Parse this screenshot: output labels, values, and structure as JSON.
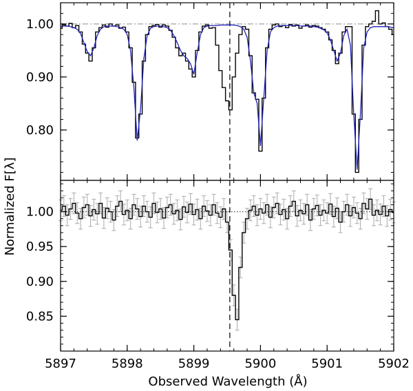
{
  "chart_data": [
    {
      "type": "line",
      "panel": "top",
      "xlim": [
        5897,
        5902
      ],
      "ylim": [
        0.705,
        1.04
      ],
      "yticks": [
        0.8,
        0.9,
        1.0
      ],
      "ytick_labels": [
        "0.80",
        "0.90",
        "1.00"
      ],
      "continuum_level": 1.0,
      "marker_x": 5899.54,
      "grid": false,
      "series": [
        {
          "color": "#000000",
          "style": "steps",
          "x": [
            5897.0,
            5897.05,
            5897.1,
            5897.15,
            5897.2,
            5897.25,
            5897.3,
            5897.35,
            5897.4,
            5897.45,
            5897.5,
            5897.55,
            5897.6,
            5897.65,
            5897.7,
            5897.75,
            5897.8,
            5897.85,
            5897.9,
            5897.95,
            5898.0,
            5898.05,
            5898.1,
            5898.15,
            5898.2,
            5898.25,
            5898.3,
            5898.35,
            5898.4,
            5898.45,
            5898.5,
            5898.55,
            5898.6,
            5898.65,
            5898.7,
            5898.75,
            5898.8,
            5898.85,
            5898.9,
            5898.95,
            5899.0,
            5899.05,
            5899.1,
            5899.15,
            5899.2,
            5899.25,
            5899.3,
            5899.35,
            5899.4,
            5899.45,
            5899.5,
            5899.55,
            5899.6,
            5899.65,
            5899.7,
            5899.75,
            5899.8,
            5899.85,
            5899.9,
            5899.95,
            5900.0,
            5900.05,
            5900.1,
            5900.15,
            5900.2,
            5900.25,
            5900.3,
            5900.35,
            5900.4,
            5900.45,
            5900.5,
            5900.55,
            5900.6,
            5900.65,
            5900.7,
            5900.75,
            5900.8,
            5900.85,
            5900.9,
            5900.95,
            5901.0,
            5901.05,
            5901.1,
            5901.15,
            5901.2,
            5901.25,
            5901.3,
            5901.35,
            5901.4,
            5901.45,
            5901.5,
            5901.55,
            5901.6,
            5901.65,
            5901.7,
            5901.75,
            5901.8,
            5901.85,
            5901.9,
            5901.95,
            5902.0
          ],
          "y": [
            0.992,
            0.998,
            0.996,
            1.001,
            0.993,
            0.997,
            0.985,
            0.962,
            0.945,
            0.93,
            0.955,
            0.985,
            0.993,
            0.998,
            0.994,
            1.0,
            0.996,
            0.998,
            0.992,
            0.994,
            0.985,
            0.955,
            0.89,
            0.785,
            0.83,
            0.93,
            0.98,
            0.995,
            0.997,
            0.999,
            0.994,
            0.998,
            0.996,
            0.988,
            0.975,
            0.955,
            0.94,
            0.945,
            0.93,
            0.915,
            0.9,
            0.95,
            0.985,
            0.996,
            0.998,
            0.992,
            0.993,
            0.96,
            0.912,
            0.88,
            0.855,
            0.838,
            0.9,
            0.945,
            0.98,
            0.995,
            0.99,
            0.94,
            0.87,
            0.858,
            0.76,
            0.86,
            0.955,
            0.99,
            0.998,
            1.0,
            0.995,
            0.997,
            0.993,
            0.999,
            0.996,
            0.998,
            0.992,
            0.996,
            0.998,
            0.994,
            0.997,
            0.996,
            0.993,
            0.99,
            0.985,
            0.97,
            0.95,
            0.925,
            0.945,
            0.985,
            0.995,
            0.995,
            0.83,
            0.72,
            0.82,
            0.96,
            0.995,
            1.0,
            1.005,
            1.025,
            1.0,
            1.002,
            0.995,
            0.99,
            0.98
          ]
        },
        {
          "color": "#2222bb",
          "style": "line",
          "x": [
            5897.0,
            5897.05,
            5897.1,
            5897.15,
            5897.2,
            5897.25,
            5897.3,
            5897.35,
            5897.4,
            5897.45,
            5897.5,
            5897.55,
            5897.6,
            5897.65,
            5897.7,
            5897.75,
            5897.8,
            5897.85,
            5897.9,
            5897.95,
            5898.0,
            5898.05,
            5898.1,
            5898.15,
            5898.2,
            5898.25,
            5898.3,
            5898.35,
            5898.4,
            5898.45,
            5898.5,
            5898.55,
            5898.6,
            5898.65,
            5898.7,
            5898.75,
            5898.8,
            5898.85,
            5898.9,
            5898.95,
            5899.0,
            5899.05,
            5899.1,
            5899.15,
            5899.2,
            5899.25,
            5899.3,
            5899.35,
            5899.4,
            5899.45,
            5899.5,
            5899.55,
            5899.6,
            5899.65,
            5899.7,
            5899.75,
            5899.8,
            5899.85,
            5899.9,
            5899.95,
            5900.0,
            5900.05,
            5900.1,
            5900.15,
            5900.2,
            5900.25,
            5900.3,
            5900.35,
            5900.4,
            5900.45,
            5900.5,
            5900.55,
            5900.6,
            5900.65,
            5900.7,
            5900.75,
            5900.8,
            5900.85,
            5900.9,
            5900.95,
            5901.0,
            5901.05,
            5901.1,
            5901.15,
            5901.2,
            5901.25,
            5901.3,
            5901.35,
            5901.4,
            5901.45,
            5901.5,
            5901.55,
            5901.6,
            5901.65,
            5901.7,
            5901.75,
            5901.8,
            5901.85,
            5901.9,
            5901.95,
            5902.0
          ],
          "y": [
            0.995,
            0.996,
            0.996,
            0.995,
            0.993,
            0.99,
            0.982,
            0.965,
            0.948,
            0.94,
            0.955,
            0.978,
            0.99,
            0.995,
            0.996,
            0.996,
            0.996,
            0.995,
            0.993,
            0.99,
            0.98,
            0.95,
            0.88,
            0.78,
            0.84,
            0.935,
            0.978,
            0.992,
            0.995,
            0.996,
            0.996,
            0.995,
            0.993,
            0.988,
            0.978,
            0.965,
            0.95,
            0.94,
            0.935,
            0.925,
            0.905,
            0.945,
            0.98,
            0.993,
            0.996,
            0.997,
            0.997,
            0.997,
            0.998,
            0.998,
            0.998,
            0.998,
            0.998,
            0.997,
            0.995,
            0.99,
            0.975,
            0.93,
            0.87,
            0.85,
            0.77,
            0.86,
            0.95,
            0.985,
            0.993,
            0.996,
            0.997,
            0.997,
            0.997,
            0.997,
            0.997,
            0.997,
            0.996,
            0.996,
            0.996,
            0.996,
            0.995,
            0.994,
            0.992,
            0.989,
            0.983,
            0.97,
            0.95,
            0.93,
            0.945,
            0.978,
            0.99,
            0.96,
            0.83,
            0.725,
            0.83,
            0.955,
            0.985,
            0.993,
            0.995,
            0.995,
            0.995,
            0.995,
            0.995,
            0.994,
            0.993
          ]
        }
      ]
    },
    {
      "type": "line",
      "panel": "bottom",
      "xlim": [
        5897,
        5902
      ],
      "ylim": [
        0.8,
        1.045
      ],
      "yticks": [
        0.85,
        0.9,
        0.95,
        1.0
      ],
      "ytick_labels": [
        "0.85",
        "0.90",
        "0.95",
        "1.00"
      ],
      "xticks": [
        5897,
        5898,
        5899,
        5900,
        5901,
        5902
      ],
      "xtick_labels": [
        "5897",
        "5898",
        "5899",
        "5900",
        "5901",
        "5902"
      ],
      "xlabel": "Observed Wavelength (Å)",
      "ylabel": "Normalized F[λ]",
      "continuum_level": 1.0,
      "marker_x": 5899.54,
      "error_bar": 0.015,
      "grid": false,
      "series": [
        {
          "color": "#000000",
          "errorbar_color": "#aaaaaa",
          "style": "steps",
          "x": [
            5897.0,
            5897.05,
            5897.1,
            5897.15,
            5897.2,
            5897.25,
            5897.3,
            5897.35,
            5897.4,
            5897.45,
            5897.5,
            5897.55,
            5897.6,
            5897.65,
            5897.7,
            5897.75,
            5897.8,
            5897.85,
            5897.9,
            5897.95,
            5898.0,
            5898.05,
            5898.1,
            5898.15,
            5898.2,
            5898.25,
            5898.3,
            5898.35,
            5898.4,
            5898.45,
            5898.5,
            5898.55,
            5898.6,
            5898.65,
            5898.7,
            5898.75,
            5898.8,
            5898.85,
            5898.9,
            5898.95,
            5899.0,
            5899.05,
            5899.1,
            5899.15,
            5899.2,
            5899.25,
            5899.3,
            5899.35,
            5899.4,
            5899.45,
            5899.5,
            5899.55,
            5899.6,
            5899.65,
            5899.7,
            5899.75,
            5899.8,
            5899.85,
            5899.9,
            5899.95,
            5900.0,
            5900.05,
            5900.1,
            5900.15,
            5900.2,
            5900.25,
            5900.3,
            5900.35,
            5900.4,
            5900.45,
            5900.5,
            5900.55,
            5900.6,
            5900.65,
            5900.7,
            5900.75,
            5900.8,
            5900.85,
            5900.9,
            5900.95,
            5901.0,
            5901.05,
            5901.1,
            5901.15,
            5901.2,
            5901.25,
            5901.3,
            5901.35,
            5901.4,
            5901.45,
            5901.5,
            5901.55,
            5901.6,
            5901.65,
            5901.7,
            5901.75,
            5901.8,
            5901.85,
            5901.9,
            5901.95,
            5902.0
          ],
          "y": [
            1.002,
            1.008,
            0.995,
            1.004,
            1.012,
            0.998,
            0.99,
            1.006,
            1.01,
            0.994,
            1.003,
            0.997,
            1.012,
            0.991,
            1.005,
            1.0,
            0.988,
            1.008,
            1.015,
            0.996,
            1.002,
            0.99,
            1.01,
            1.004,
            0.993,
            1.008,
            1.0,
            0.992,
            1.012,
            0.999,
            1.004,
            0.991,
            1.006,
            1.01,
            0.997,
            1.002,
            0.989,
            1.007,
            0.999,
            1.011,
            0.996,
            1.003,
            0.99,
            1.008,
            1.001,
            0.995,
            1.01,
            0.998,
            0.992,
            1.004,
            0.985,
            0.945,
            0.88,
            0.845,
            0.92,
            0.97,
            0.99,
            1.002,
            1.008,
            0.995,
            1.004,
            0.998,
            1.01,
            0.992,
            1.006,
            1.012,
            0.996,
            1.003,
            0.99,
            1.008,
            1.015,
            0.994,
            1.002,
            0.997,
            1.01,
            0.988,
            1.004,
            1.009,
            0.995,
            1.002,
            0.998,
            1.011,
            0.993,
            1.005,
            0.985,
            1.0,
            1.01,
            0.994,
            1.006,
            0.998,
            0.99,
            1.012,
            1.004,
            1.018,
            0.995,
            1.002,
            0.996,
            1.008,
            0.994,
            1.003,
            0.999
          ]
        }
      ]
    }
  ]
}
